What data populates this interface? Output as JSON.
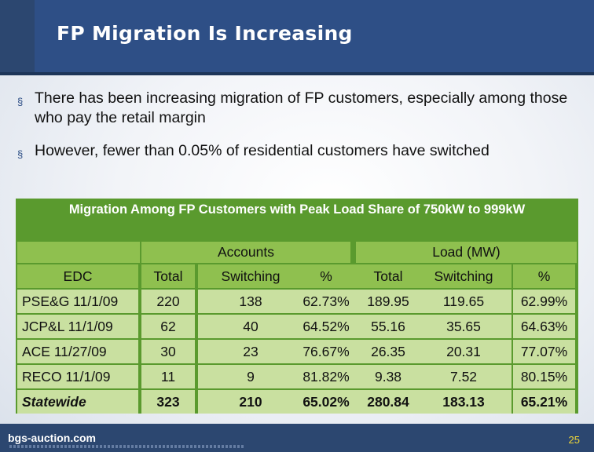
{
  "slide": {
    "title": "FP Migration Is Increasing",
    "bullets": [
      "There has been increasing migration of FP customers, especially among those who pay the retail margin",
      "However, fewer than 0.05% of residential customers have switched"
    ],
    "bullet_marker": "§",
    "colors": {
      "header": "#2e4f86",
      "table_dark": "#5a9a2e",
      "table_header": "#8fc04f",
      "table_light": "#c9e0a0",
      "page_number": "#f0d838"
    }
  },
  "table": {
    "caption": "Migration Among FP Customers with Peak Load Share of 750kW to 999kW",
    "group_headers": {
      "accounts": "Accounts",
      "load": "Load (MW)"
    },
    "columns": [
      "EDC",
      "Total",
      "Switching",
      "%",
      "Total",
      "Switching",
      "%"
    ],
    "rows": [
      [
        "PSE&G 11/1/09",
        "220",
        "138",
        "62.73%",
        "189.95",
        "119.65",
        "62.99%"
      ],
      [
        "JCP&L 11/1/09",
        "62",
        "40",
        "64.52%",
        "55.16",
        "35.65",
        "64.63%"
      ],
      [
        "ACE 11/27/09",
        "30",
        "23",
        "76.67%",
        "26.35",
        "20.31",
        "77.07%"
      ],
      [
        "RECO 11/1/09",
        "11",
        "9",
        "81.82%",
        "9.38",
        "7.52",
        "80.15%"
      ],
      [
        "Statewide",
        "323",
        "210",
        "65.02%",
        "280.84",
        "183.13",
        "65.21%"
      ]
    ]
  },
  "footer": {
    "logo": "bgs-auction.com",
    "page_number": "25"
  }
}
